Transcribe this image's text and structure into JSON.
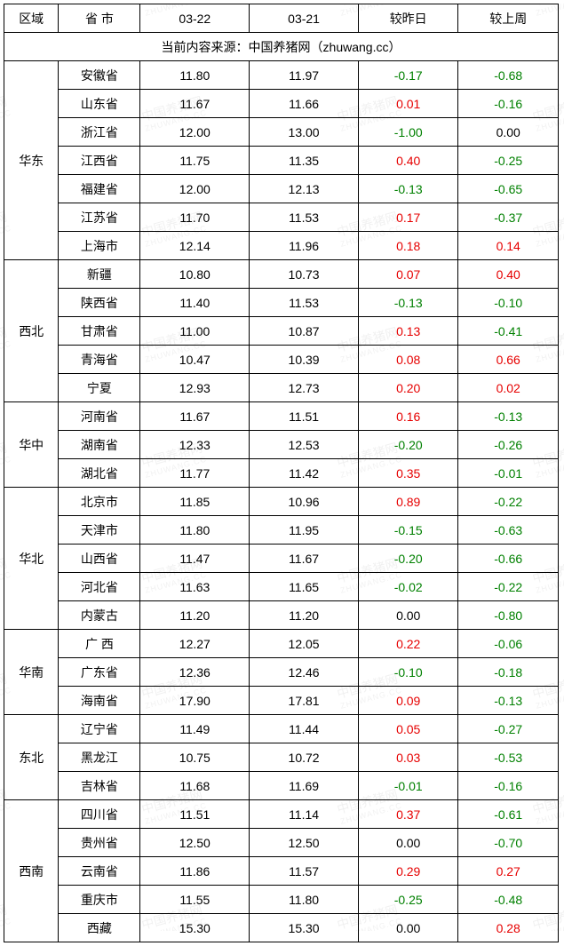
{
  "watermark": {
    "line1": "中国养猪网",
    "line2": "ZHUWANG.CC"
  },
  "header": {
    "region": "区域",
    "province": "省 市",
    "date1": "03-22",
    "date2": "03-21",
    "delta_day": "较昨日",
    "delta_week": "较上周"
  },
  "source_line": "当前内容来源：中国养猪网（zhuwang.cc）",
  "colors": {
    "positive": "#e60000",
    "negative": "#008000",
    "border": "#000000"
  },
  "regions": [
    {
      "name": "华东",
      "rows": [
        {
          "prov": "安徽省",
          "d1": "11.80",
          "d2": "11.97",
          "dy": "-0.17",
          "dw": "-0.68"
        },
        {
          "prov": "山东省",
          "d1": "11.67",
          "d2": "11.66",
          "dy": "0.01",
          "dw": "-0.16"
        },
        {
          "prov": "浙江省",
          "d1": "12.00",
          "d2": "13.00",
          "dy": "-1.00",
          "dw": "0.00"
        },
        {
          "prov": "江西省",
          "d1": "11.75",
          "d2": "11.35",
          "dy": "0.40",
          "dw": "-0.25"
        },
        {
          "prov": "福建省",
          "d1": "12.00",
          "d2": "12.13",
          "dy": "-0.13",
          "dw": "-0.65"
        },
        {
          "prov": "江苏省",
          "d1": "11.70",
          "d2": "11.53",
          "dy": "0.17",
          "dw": "-0.37"
        },
        {
          "prov": "上海市",
          "d1": "12.14",
          "d2": "11.96",
          "dy": "0.18",
          "dw": "0.14"
        }
      ]
    },
    {
      "name": "西北",
      "rows": [
        {
          "prov": "新疆",
          "d1": "10.80",
          "d2": "10.73",
          "dy": "0.07",
          "dw": "0.40"
        },
        {
          "prov": "陕西省",
          "d1": "11.40",
          "d2": "11.53",
          "dy": "-0.13",
          "dw": "-0.10"
        },
        {
          "prov": "甘肃省",
          "d1": "11.00",
          "d2": "10.87",
          "dy": "0.13",
          "dw": "-0.41"
        },
        {
          "prov": "青海省",
          "d1": "10.47",
          "d2": "10.39",
          "dy": "0.08",
          "dw": "0.66"
        },
        {
          "prov": "宁夏",
          "d1": "12.93",
          "d2": "12.73",
          "dy": "0.20",
          "dw": "0.02"
        }
      ]
    },
    {
      "name": "华中",
      "rows": [
        {
          "prov": "河南省",
          "d1": "11.67",
          "d2": "11.51",
          "dy": "0.16",
          "dw": "-0.13"
        },
        {
          "prov": "湖南省",
          "d1": "12.33",
          "d2": "12.53",
          "dy": "-0.20",
          "dw": "-0.26"
        },
        {
          "prov": "湖北省",
          "d1": "11.77",
          "d2": "11.42",
          "dy": "0.35",
          "dw": "-0.01"
        }
      ]
    },
    {
      "name": "华北",
      "rows": [
        {
          "prov": "北京市",
          "d1": "11.85",
          "d2": "10.96",
          "dy": "0.89",
          "dw": "-0.22"
        },
        {
          "prov": "天津市",
          "d1": "11.80",
          "d2": "11.95",
          "dy": "-0.15",
          "dw": "-0.63"
        },
        {
          "prov": "山西省",
          "d1": "11.47",
          "d2": "11.67",
          "dy": "-0.20",
          "dw": "-0.66"
        },
        {
          "prov": "河北省",
          "d1": "11.63",
          "d2": "11.65",
          "dy": "-0.02",
          "dw": "-0.22"
        },
        {
          "prov": "内蒙古",
          "d1": "11.20",
          "d2": "11.20",
          "dy": "0.00",
          "dw": "-0.80"
        }
      ]
    },
    {
      "name": "华南",
      "rows": [
        {
          "prov": "广 西",
          "d1": "12.27",
          "d2": "12.05",
          "dy": "0.22",
          "dw": "-0.06"
        },
        {
          "prov": "广东省",
          "d1": "12.36",
          "d2": "12.46",
          "dy": "-0.10",
          "dw": "-0.18"
        },
        {
          "prov": "海南省",
          "d1": "17.90",
          "d2": "17.81",
          "dy": "0.09",
          "dw": "-0.13"
        }
      ]
    },
    {
      "name": "东北",
      "rows": [
        {
          "prov": "辽宁省",
          "d1": "11.49",
          "d2": "11.44",
          "dy": "0.05",
          "dw": "-0.27"
        },
        {
          "prov": "黑龙江",
          "d1": "10.75",
          "d2": "10.72",
          "dy": "0.03",
          "dw": "-0.53"
        },
        {
          "prov": "吉林省",
          "d1": "11.68",
          "d2": "11.69",
          "dy": "-0.01",
          "dw": "-0.16"
        }
      ]
    },
    {
      "name": "西南",
      "rows": [
        {
          "prov": "四川省",
          "d1": "11.51",
          "d2": "11.14",
          "dy": "0.37",
          "dw": "-0.61"
        },
        {
          "prov": "贵州省",
          "d1": "12.50",
          "d2": "12.50",
          "dy": "0.00",
          "dw": "-0.70"
        },
        {
          "prov": "云南省",
          "d1": "11.86",
          "d2": "11.57",
          "dy": "0.29",
          "dw": "0.27"
        },
        {
          "prov": "重庆市",
          "d1": "11.55",
          "d2": "11.80",
          "dy": "-0.25",
          "dw": "-0.48"
        },
        {
          "prov": "西藏",
          "d1": "15.30",
          "d2": "15.30",
          "dy": "0.00",
          "dw": "0.28"
        }
      ]
    }
  ]
}
